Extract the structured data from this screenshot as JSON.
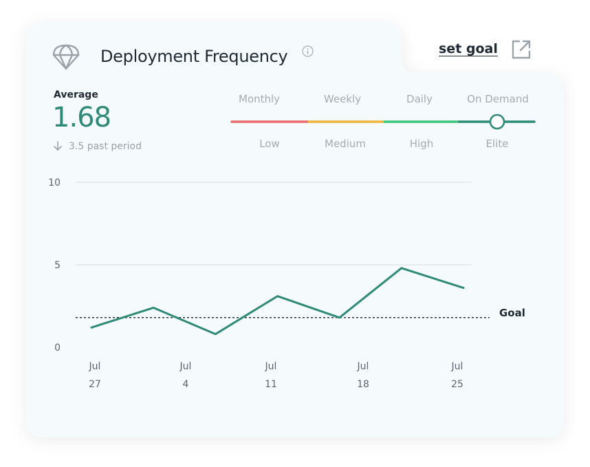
{
  "card": {
    "title": "Deployment Frequency",
    "set_goal_label": "set goal",
    "icons": {
      "header": "parachute-icon",
      "info": "info-icon",
      "external": "external-link-icon",
      "trend": "arrow-down-icon"
    }
  },
  "summary": {
    "average_label": "Average",
    "average_value": "1.68",
    "past_period": "3.5 past period"
  },
  "performance_scale": {
    "frequencies": [
      "Monthly",
      "Weekly",
      "Daily",
      "On Demand"
    ],
    "levels": [
      "Low",
      "Medium",
      "High",
      "Elite"
    ],
    "colors": [
      "#ea6b6b",
      "#f0b43b",
      "#3cc47a",
      "#2f8a78"
    ],
    "current_level": "Elite",
    "current_value": 1.68
  },
  "chart_data": {
    "type": "line",
    "title": "",
    "xlabel": "",
    "ylabel": "",
    "ylim": [
      0,
      10
    ],
    "yticks": [
      "0",
      "5",
      "10"
    ],
    "x_tick_labels": [
      {
        "month": "Jul",
        "day": "27"
      },
      {
        "month": "Jul",
        "day": "4"
      },
      {
        "month": "Jul",
        "day": "11"
      },
      {
        "month": "Jul",
        "day": "18"
      },
      {
        "month": "Jul",
        "day": "25"
      }
    ],
    "series": [
      {
        "color": "#2f8a78",
        "values": [
          1.2,
          2.4,
          0.8,
          3.1,
          1.8,
          4.8,
          3.6
        ]
      }
    ],
    "goal": {
      "label": "Goal",
      "value": 1.8
    },
    "grid": true
  }
}
